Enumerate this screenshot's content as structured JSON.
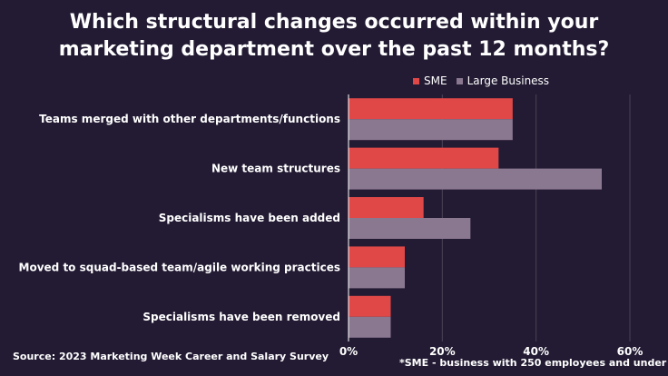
{
  "title": {
    "line1": "Which structural changes occurred within your",
    "line2": "marketing department over the past 12 months?"
  },
  "source": "Source: 2023 Marketing Week Career and Salary Survey",
  "footnote": "*SME - business with 250 employees and under",
  "colors": {
    "sme": "#e04848",
    "large": "#8a7790",
    "background": "#231b33",
    "grid": "#4a4256"
  },
  "chart_data": {
    "type": "bar",
    "orientation": "horizontal",
    "categories": [
      "Teams merged with other departments/functions",
      "New team structures",
      "Specialisms have been added",
      "Moved to squad-based team/agile working practices",
      "Specialisms have been removed"
    ],
    "series": [
      {
        "name": "SME",
        "values": [
          35,
          32,
          16,
          12,
          9
        ]
      },
      {
        "name": "Large Business",
        "values": [
          35,
          54,
          26,
          12,
          9
        ]
      }
    ],
    "xlim": [
      0,
      60
    ],
    "xticks": [
      "0%",
      "20%",
      "40%",
      "60%"
    ],
    "xtick_values": [
      0,
      20,
      40,
      60
    ],
    "grid": true,
    "legend": "top-right"
  }
}
